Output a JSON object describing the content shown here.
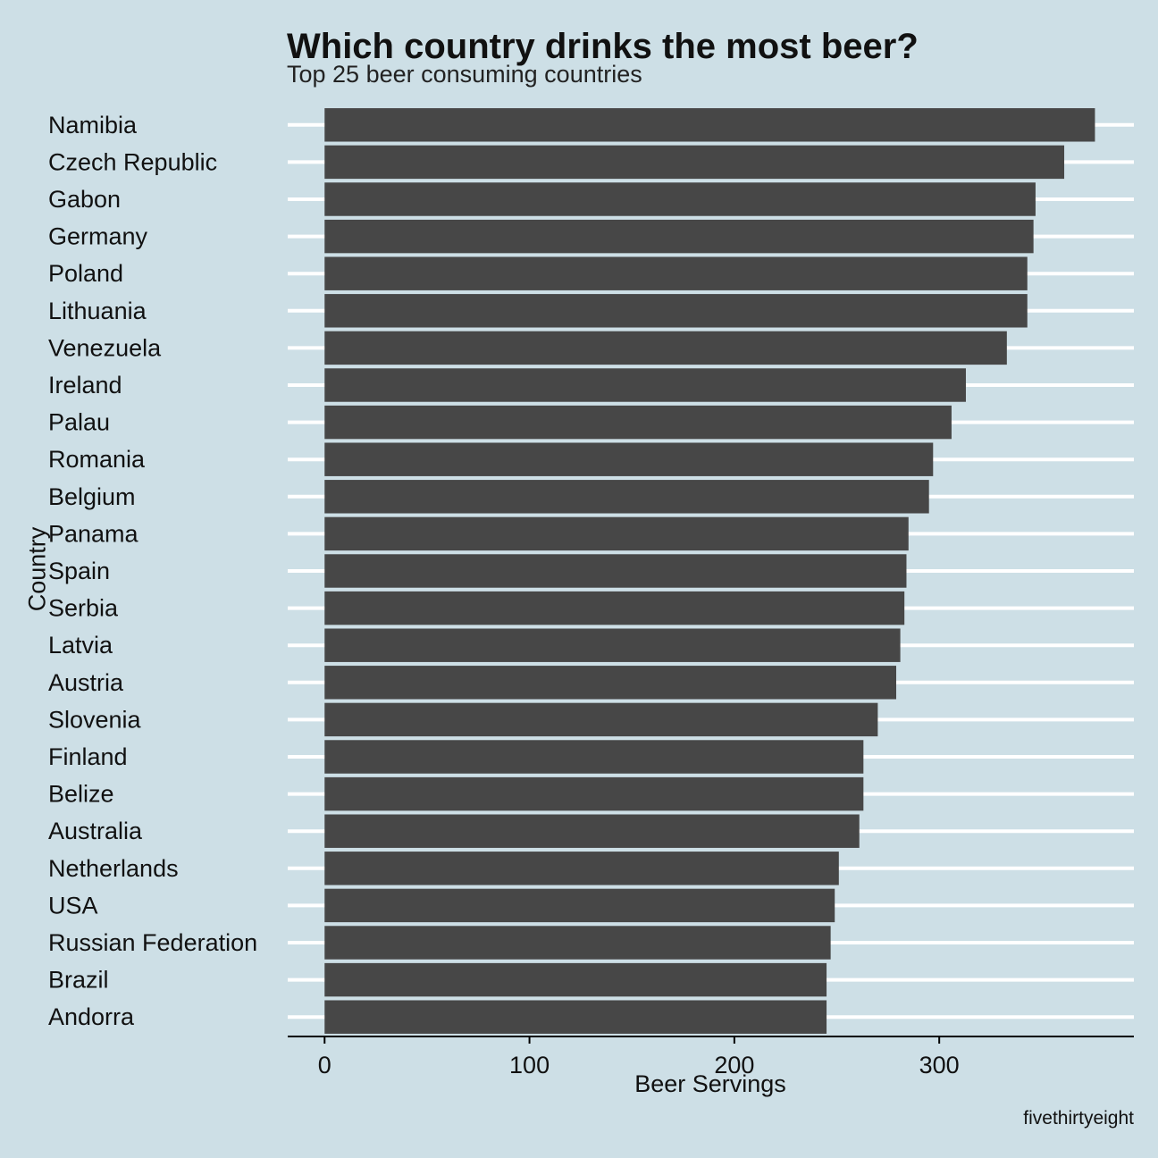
{
  "chart_data": {
    "type": "bar",
    "orientation": "horizontal",
    "title": "Which country drinks the most beer?",
    "subtitle": "Top 25 beer consuming countries",
    "xlabel": "Beer Servings",
    "ylabel": "Country",
    "caption": "fivethirtyeight",
    "categories": [
      "Namibia",
      "Czech Republic",
      "Gabon",
      "Germany",
      "Poland",
      "Lithuania",
      "Venezuela",
      "Ireland",
      "Palau",
      "Romania",
      "Belgium",
      "Panama",
      "Spain",
      "Serbia",
      "Latvia",
      "Austria",
      "Slovenia",
      "Finland",
      "Belize",
      "Australia",
      "Netherlands",
      "USA",
      "Russian Federation",
      "Brazil",
      "Andorra"
    ],
    "values": [
      376,
      361,
      347,
      346,
      343,
      343,
      333,
      313,
      306,
      297,
      295,
      285,
      284,
      283,
      281,
      279,
      270,
      263,
      263,
      261,
      251,
      249,
      247,
      245,
      245
    ],
    "xlim": [
      -18,
      395
    ],
    "xticks": [
      0,
      100,
      200,
      300
    ],
    "grid": "horizontal major lines",
    "colors": {
      "background": "#cddfe6",
      "bar": "#474747",
      "grid": "#ffffff",
      "axis": "#000000"
    }
  }
}
